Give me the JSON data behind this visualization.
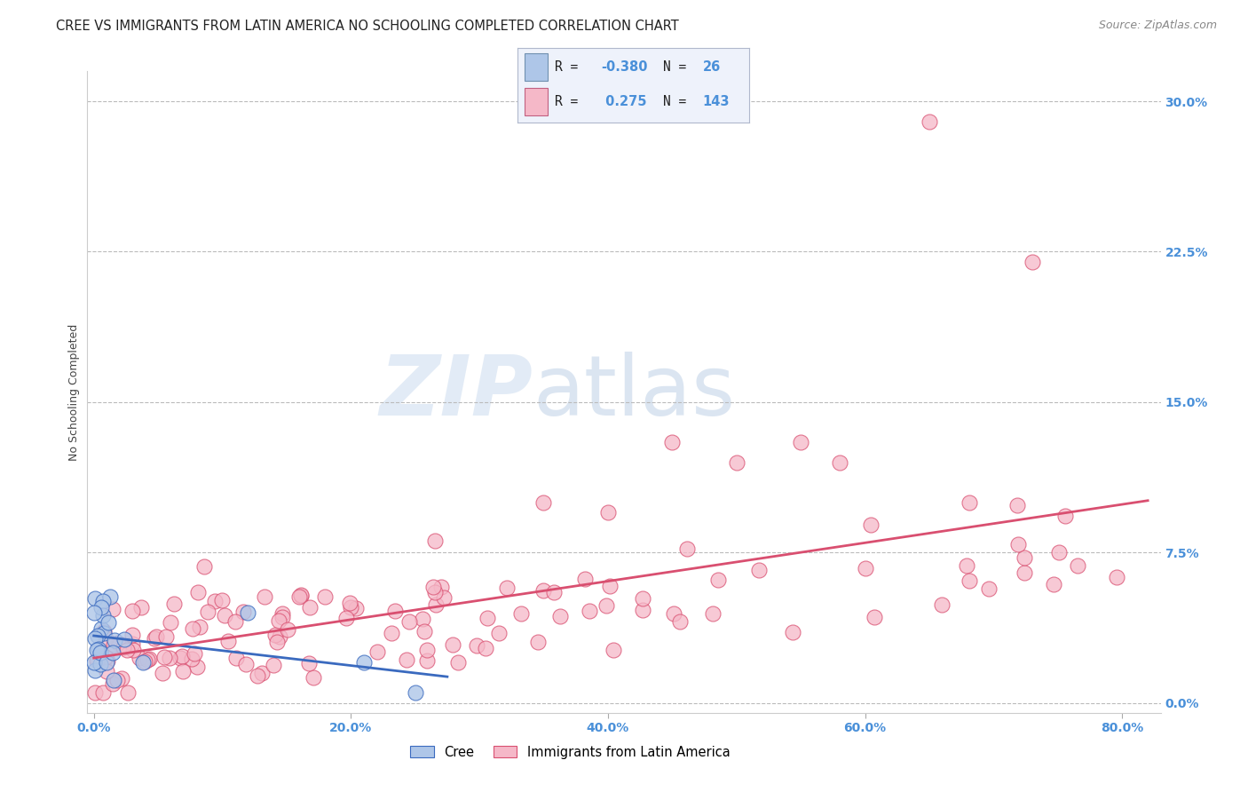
{
  "title": "CREE VS IMMIGRANTS FROM LATIN AMERICA NO SCHOOLING COMPLETED CORRELATION CHART",
  "source": "Source: ZipAtlas.com",
  "ylabel": "No Schooling Completed",
  "cree_R": -0.38,
  "cree_N": 26,
  "latin_R": 0.275,
  "latin_N": 143,
  "cree_color": "#aec6e8",
  "latin_color": "#f5b8c8",
  "cree_line_color": "#3a6abf",
  "latin_line_color": "#d94f70",
  "title_color": "#222222",
  "axis_label_color": "#4a90d9",
  "grid_color": "#bbbbbb",
  "background_color": "#ffffff",
  "xlim": [
    -0.005,
    0.83
  ],
  "ylim": [
    -0.005,
    0.315
  ],
  "ytick_values": [
    0.0,
    0.075,
    0.15,
    0.225,
    0.3
  ],
  "ytick_labels": [
    "0.0%",
    "7.5%",
    "15.0%",
    "22.5%",
    "30.0%"
  ],
  "xtick_values": [
    0.0,
    0.2,
    0.4,
    0.6,
    0.8
  ],
  "xtick_labels": [
    "0.0%",
    "20.0%",
    "40.0%",
    "60.0%",
    "80.0%"
  ],
  "watermark_zip": "ZIP",
  "watermark_atlas": "atlas",
  "title_fontsize": 10.5,
  "source_fontsize": 9,
  "tick_fontsize": 10,
  "ylabel_fontsize": 9
}
